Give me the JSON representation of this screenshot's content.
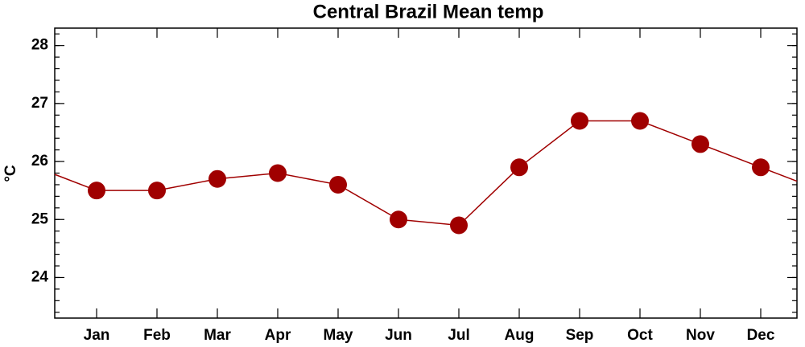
{
  "chart_data": {
    "type": "line",
    "title": "Central Brazil Mean temp",
    "y_label": "°C",
    "categories": [
      "Jan",
      "Feb",
      "Mar",
      "Apr",
      "May",
      "Jun",
      "Jul",
      "Aug",
      "Sep",
      "Oct",
      "Nov",
      "Dec"
    ],
    "values": [
      25.5,
      25.5,
      25.7,
      25.8,
      25.6,
      25.0,
      24.9,
      25.9,
      26.7,
      26.7,
      26.3,
      25.9
    ],
    "color": "#a00000",
    "ylim": [
      23.3,
      28.3
    ],
    "yticks": [
      24,
      25,
      26,
      27,
      28
    ],
    "grid": false
  }
}
